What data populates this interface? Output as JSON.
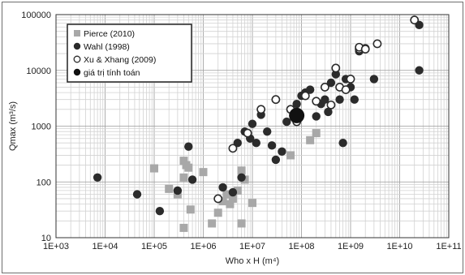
{
  "chart_data": {
    "type": "scatter",
    "xscale": "log",
    "yscale": "log",
    "xlim": [
      1000,
      100000000000
    ],
    "ylim": [
      10,
      100000
    ],
    "xticks": [
      "1E+03",
      "1E+04",
      "1E+05",
      "1E+06",
      "1E+07",
      "1E+08",
      "1E+09",
      "1E+10",
      "1E+11"
    ],
    "yticks": [
      "10",
      "100",
      "1000",
      "10000",
      "100000"
    ],
    "xlabel": "Who x H (m⁴)",
    "ylabel": "Qmax (m³/s)",
    "grid": true,
    "legend_position": "top-left",
    "series": [
      {
        "name": "Pierce (2010)",
        "marker": "square",
        "color": "#a8a8a8",
        "points": [
          [
            100000,
            175
          ],
          [
            200000,
            75
          ],
          [
            300000,
            60
          ],
          [
            400000,
            240
          ],
          [
            400000,
            120
          ],
          [
            400000,
            15
          ],
          [
            450000,
            200
          ],
          [
            500000,
            180
          ],
          [
            550000,
            32
          ],
          [
            1000000,
            150
          ],
          [
            1500000,
            18
          ],
          [
            2000000,
            28
          ],
          [
            2500000,
            45
          ],
          [
            3000000,
            60
          ],
          [
            3500000,
            40
          ],
          [
            4000000,
            50
          ],
          [
            5000000,
            70
          ],
          [
            6000000,
            160
          ],
          [
            6000000,
            18
          ],
          [
            7000000,
            110
          ],
          [
            10000000,
            42
          ],
          [
            60000000,
            300
          ],
          [
            150000000,
            560
          ],
          [
            200000000,
            750
          ]
        ]
      },
      {
        "name": "Wahl (1998)",
        "marker": "circle-filled",
        "color": "#2b2b2b",
        "points": [
          [
            7000,
            120
          ],
          [
            45000,
            60
          ],
          [
            130000,
            30
          ],
          [
            300000,
            70
          ],
          [
            500000,
            430
          ],
          [
            600000,
            110
          ],
          [
            2500000,
            80
          ],
          [
            4000000,
            65
          ],
          [
            5000000,
            500
          ],
          [
            6000000,
            120
          ],
          [
            7000000,
            800
          ],
          [
            9000000,
            600
          ],
          [
            10000000,
            1100
          ],
          [
            12000000,
            500
          ],
          [
            15000000,
            1600
          ],
          [
            20000000,
            800
          ],
          [
            25000000,
            450
          ],
          [
            30000000,
            250
          ],
          [
            40000000,
            350
          ],
          [
            50000000,
            1200
          ],
          [
            60000000,
            2000
          ],
          [
            80000000,
            2500
          ],
          [
            100000000,
            3500
          ],
          [
            120000000,
            4000
          ],
          [
            150000000,
            4500
          ],
          [
            200000000,
            1500
          ],
          [
            250000000,
            2500
          ],
          [
            300000000,
            3000
          ],
          [
            350000000,
            1800
          ],
          [
            400000000,
            6000
          ],
          [
            500000000,
            8500
          ],
          [
            600000000,
            3000
          ],
          [
            700000000,
            500
          ],
          [
            800000000,
            7000
          ],
          [
            1000000000,
            5000
          ],
          [
            1200000000,
            3000
          ],
          [
            1500000000,
            22000
          ],
          [
            2000000000,
            25000
          ],
          [
            3000000000,
            7000
          ],
          [
            25000000000,
            65000
          ],
          [
            25000000000,
            10000
          ]
        ]
      },
      {
        "name": "Xu & Xhang (2009)",
        "marker": "circle-open",
        "color": "#2b2b2b",
        "points": [
          [
            2000000,
            50
          ],
          [
            4000000,
            400
          ],
          [
            8000000,
            750
          ],
          [
            15000000,
            2000
          ],
          [
            30000000,
            3000
          ],
          [
            60000000,
            2000
          ],
          [
            80000000,
            1200
          ],
          [
            120000000,
            3500
          ],
          [
            200000000,
            2800
          ],
          [
            300000000,
            5000
          ],
          [
            400000000,
            2400
          ],
          [
            500000000,
            11000
          ],
          [
            600000000,
            5000
          ],
          [
            800000000,
            4500
          ],
          [
            1000000000,
            7000
          ],
          [
            1500000000,
            24000
          ],
          [
            1500000000,
            26000
          ],
          [
            2000000000,
            24000
          ],
          [
            3500000000,
            30000
          ],
          [
            20000000000,
            80000
          ]
        ]
      },
      {
        "name": "giá trị tính toán",
        "marker": "circle-filled-large",
        "color": "#111111",
        "points": [
          [
            80000000,
            1550
          ]
        ]
      }
    ]
  }
}
